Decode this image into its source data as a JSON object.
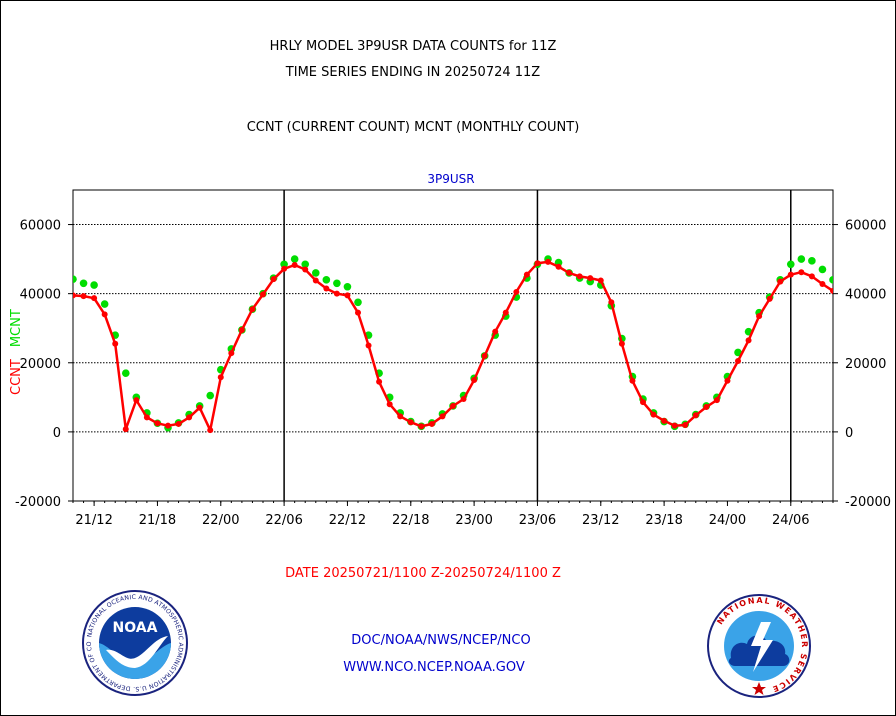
{
  "page": {
    "title_line1": "HRLY MODEL 3P9USR DATA COUNTS for 11Z",
    "title_line2": "TIME SERIES ENDING IN 20250724 11Z",
    "subtitle": "CCNT (CURRENT COUNT) MCNT (MONTHLY COUNT)",
    "panel_label": "3P9USR",
    "date_range": "DATE 20250721/1100 Z-20250724/1100 Z",
    "footer_line1": "DOC/NOAA/NWS/NCEP/NCO",
    "footer_line2": "WWW.NCO.NCEP.NOAA.GOV",
    "logo_left_text": "NOAA",
    "logo_left_ring_text": "NATIONAL OCEANIC AND ATMOSPHERIC ADMINISTRATION U.S. DEPARTMENT OF COMMERCE",
    "logo_right_ring_text": "NATIONAL WEATHER SERVICE"
  },
  "colors": {
    "ccnt": "#ff0000",
    "mcnt": "#00dd00",
    "title": "#000000",
    "panel_label": "#0000cc",
    "date_text": "#ff0000",
    "footer": "#0000cc"
  },
  "chart_data": {
    "type": "line",
    "title": "HRLY MODEL 3P9USR DATA COUNTS for 11Z",
    "subtitle": "TIME SERIES ENDING IN 20250724 11Z",
    "xlabel": "DATE 20250721/1100 Z-20250724/1100 Z",
    "ylabel_ccnt": "CCNT",
    "ylabel_mcnt": "MCNT",
    "ylim": [
      -20000,
      70000
    ],
    "yticks": [
      -20000,
      0,
      20000,
      40000,
      60000
    ],
    "ytick_labels": [
      "-20000",
      "0",
      "20000",
      "40000",
      "60000"
    ],
    "grid": true,
    "x_hours_range": [
      -1,
      71
    ],
    "xtick_hours": [
      1,
      7,
      13,
      19,
      25,
      31,
      37,
      43,
      49,
      55,
      61,
      67
    ],
    "xtick_labels": [
      "21/12",
      "21/18",
      "22/00",
      "22/06",
      "22/12",
      "22/18",
      "23/00",
      "23/06",
      "23/12",
      "23/18",
      "24/00",
      "24/06"
    ],
    "day_boundaries_hours": [
      19,
      43,
      67
    ],
    "series": [
      {
        "name": "CCNT",
        "style": "line",
        "values": [
          39500,
          39300,
          38700,
          34000,
          25500,
          800,
          9200,
          4200,
          2500,
          1800,
          2300,
          4200,
          7000,
          500,
          15800,
          22800,
          29500,
          35500,
          39800,
          44200,
          47200,
          48300,
          47000,
          43800,
          41500,
          40000,
          39500,
          34500,
          25000,
          14500,
          8000,
          4500,
          2800,
          1600,
          2300,
          4500,
          7500,
          9500,
          15000,
          22000,
          29000,
          34500,
          40500,
          45500,
          48800,
          49200,
          47800,
          46000,
          45000,
          44500,
          43800,
          37500,
          25500,
          14800,
          8600,
          5000,
          3200,
          1800,
          2000,
          4800,
          7200,
          9200,
          14800,
          20500,
          26500,
          33500,
          38500,
          43500,
          45500,
          46200,
          45000,
          42800,
          40800
        ]
      },
      {
        "name": "MCNT",
        "style": "dots",
        "values": [
          44200,
          43000,
          42500,
          37000,
          28000,
          17000,
          10000,
          5500,
          2500,
          1200,
          2600,
          5000,
          7500,
          10500,
          18000,
          24000,
          29500,
          35500,
          40000,
          44500,
          48500,
          50000,
          48500,
          46000,
          44000,
          43000,
          42000,
          37500,
          28000,
          17000,
          10000,
          5500,
          3000,
          1600,
          2600,
          5200,
          7500,
          10500,
          15500,
          22000,
          28000,
          33500,
          39000,
          44500,
          48500,
          50000,
          49000,
          46000,
          44500,
          43500,
          42500,
          36500,
          27000,
          16000,
          9500,
          5500,
          3000,
          1600,
          2200,
          5000,
          7500,
          10000,
          16000,
          23000,
          29000,
          34500,
          39000,
          44000,
          48500,
          50000,
          49500,
          47000,
          44000
        ]
      }
    ]
  }
}
